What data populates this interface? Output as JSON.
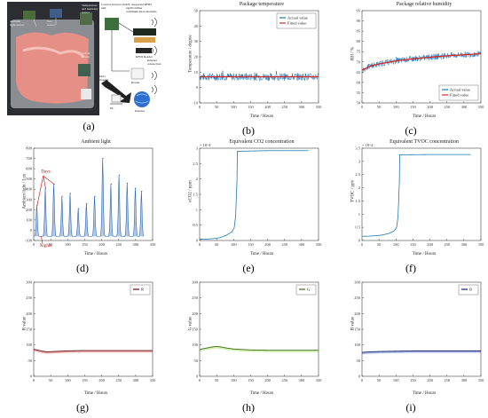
{
  "panel_labels": [
    "(a)",
    "(b)",
    "(c)",
    "(d)",
    "(e)",
    "(f)",
    "(g)",
    "(h)",
    "(i)"
  ],
  "photo": {
    "labels": {
      "ambient": "Ambient light sensor",
      "gas": "Gas sensor",
      "th": "Temperature and humidity sensor",
      "color": "Colour sensor",
      "control": "Control and process unit",
      "rfid_module": "I2C supported RFID tag/PC/Other communication modules",
      "rfid_reader": "RFID Reader",
      "router": "Router",
      "internet_conn": "Internet connection",
      "pc": "PC",
      "internet": "Internet",
      "data_transfer": "Data transfer"
    }
  },
  "chart_data": [
    {
      "id": "b",
      "type": "line",
      "title": "Package temperature",
      "xlabel": "Time / Hours",
      "ylabel": "Temperature / degree",
      "xlim": [
        0,
        350
      ],
      "ylim": [
        -10,
        50
      ],
      "xticks": [
        0,
        50,
        100,
        150,
        200,
        250,
        300,
        350
      ],
      "yticks": [
        -10,
        0,
        10,
        20,
        30,
        40,
        50
      ],
      "legend": {
        "position": "top-right",
        "entries": [
          "Actual value",
          "Fitted value"
        ]
      },
      "series": [
        {
          "name": "Actual value",
          "color": "#1f77b4",
          "style": "noisy",
          "x_range": [
            0,
            350
          ],
          "mean": 7,
          "spread": 2.5
        },
        {
          "name": "Fitted value",
          "color": "#d62728",
          "x": [
            0,
            350
          ],
          "values": [
            7,
            7
          ]
        }
      ]
    },
    {
      "id": "c",
      "type": "line",
      "title": "Package relative humidity",
      "xlabel": "Time / Hours",
      "ylabel": "RH / %",
      "xlim": [
        0,
        350
      ],
      "ylim": [
        50,
        95
      ],
      "xticks": [
        0,
        50,
        100,
        150,
        200,
        250,
        300,
        350
      ],
      "yticks": [
        50,
        55,
        60,
        65,
        70,
        75,
        80,
        85,
        90,
        95
      ],
      "legend": {
        "position": "bottom-right",
        "entries": [
          "Actual value",
          "Fitted value"
        ]
      },
      "series": [
        {
          "name": "Actual value",
          "color": "#1f77b4",
          "style": "noisy",
          "x_range": [
            0,
            350
          ],
          "curve": "fitted",
          "spread": 1.5
        },
        {
          "name": "Fitted value",
          "color": "#d62728",
          "x": [
            0,
            25,
            50,
            100,
            150,
            200,
            250,
            300,
            350
          ],
          "values": [
            66,
            68,
            69,
            70.5,
            71.5,
            72.3,
            73,
            73.5,
            74
          ]
        }
      ]
    },
    {
      "id": "d",
      "type": "line",
      "title": "Ambient light",
      "xlabel": "Time / Hours",
      "ylabel": "Ambient light / Lux",
      "xlim": [
        0,
        350
      ],
      "ylim": [
        -100,
        800
      ],
      "xticks": [
        0,
        50,
        100,
        150,
        200,
        250,
        300,
        350
      ],
      "yticks": [
        -100,
        0,
        100,
        200,
        300,
        400,
        500,
        600,
        700,
        800
      ],
      "annotations": [
        "Days",
        "Nights"
      ],
      "series": [
        {
          "name": "",
          "color": "#1f5fb4",
          "style": "daily",
          "peaks_x": [
            10,
            35,
            60,
            84,
            108,
            132,
            156,
            180,
            204,
            228,
            252,
            276,
            300,
            318
          ],
          "peaks": [
            240,
            410,
            450,
            330,
            360,
            210,
            260,
            330,
            700,
            450,
            540,
            460,
            410,
            380
          ],
          "night_value": -60
        }
      ]
    },
    {
      "id": "e",
      "type": "line",
      "title": "Equivalent CO2 concentration",
      "xlabel": "Time / Hours",
      "ylabel": "eCO2 / ppm",
      "xlim": [
        0,
        350
      ],
      "ylim": [
        0,
        30000
      ],
      "xticks": [
        0,
        50,
        100,
        150,
        200,
        250,
        300,
        350
      ],
      "yticks": [
        0,
        5000,
        10000,
        15000,
        20000,
        25000,
        30000
      ],
      "ytick_labels": [
        "0",
        "0.5",
        "1",
        "1.5",
        "2",
        "2.5",
        "3"
      ],
      "y_multiplier": "× 10^4",
      "series": [
        {
          "name": "",
          "color": "#1f77b4",
          "x": [
            0,
            20,
            40,
            60,
            80,
            95,
            102,
            106,
            110,
            111,
            200,
            320
          ],
          "values": [
            400,
            450,
            600,
            900,
            1800,
            2800,
            4200,
            8000,
            20000,
            29000,
            29200,
            29200
          ]
        }
      ]
    },
    {
      "id": "f",
      "type": "line",
      "title": "Equivalent TVOC concentration",
      "xlabel": "Time / Hours",
      "ylabel": "TVOC / ppb",
      "xlim": [
        0,
        350
      ],
      "ylim": [
        0,
        35000
      ],
      "xticks": [
        0,
        50,
        100,
        150,
        200,
        250,
        300,
        350
      ],
      "yticks": [
        0,
        5000,
        10000,
        15000,
        20000,
        25000,
        30000,
        35000
      ],
      "ytick_labels": [
        "0",
        "0.5",
        "1",
        "1.5",
        "2",
        "2.5",
        "3",
        "3.5"
      ],
      "y_multiplier": "× 10^4",
      "series": [
        {
          "name": "",
          "color": "#1f77b4",
          "x": [
            0,
            20,
            40,
            60,
            80,
            95,
            102,
            106,
            110,
            111,
            200,
            320
          ],
          "values": [
            1600,
            1650,
            1800,
            2100,
            2700,
            3700,
            5000,
            9000,
            22000,
            32500,
            32600,
            32600
          ]
        }
      ]
    },
    {
      "id": "g",
      "type": "line",
      "title": "",
      "xlabel": "Time / Hours",
      "ylabel": "R value",
      "xlim": [
        0,
        350
      ],
      "ylim": [
        0,
        300
      ],
      "xticks": [
        0,
        50,
        100,
        150,
        200,
        250,
        300,
        350
      ],
      "yticks": [
        0,
        50,
        100,
        150,
        200,
        250,
        300
      ],
      "legend": {
        "position": "top-right",
        "entries": [
          "R"
        ]
      },
      "series": [
        {
          "name": "R",
          "color": "#e02020",
          "dark": "#5a1010",
          "x": [
            0,
            10,
            25,
            40,
            60,
            100,
            150,
            200,
            250,
            300,
            350
          ],
          "values": [
            86,
            84,
            80,
            78,
            79,
            81,
            82,
            82,
            82,
            82,
            82
          ]
        }
      ]
    },
    {
      "id": "h",
      "type": "line",
      "title": "",
      "xlabel": "Time / Hours",
      "ylabel": "G value",
      "xlim": [
        0,
        350
      ],
      "ylim": [
        0,
        300
      ],
      "xticks": [
        0,
        50,
        100,
        150,
        200,
        250,
        300,
        350
      ],
      "yticks": [
        0,
        50,
        100,
        150,
        200,
        250,
        300
      ],
      "legend": {
        "position": "top-right",
        "entries": [
          "G"
        ]
      },
      "series": [
        {
          "name": "G",
          "color": "#7ed321",
          "dark": "#3d6e10",
          "x": [
            0,
            10,
            25,
            40,
            50,
            60,
            80,
            100,
            150,
            200,
            250,
            300,
            350
          ],
          "values": [
            85,
            88,
            91,
            94,
            95,
            94,
            90,
            87,
            84,
            83,
            83,
            83,
            83
          ]
        }
      ]
    },
    {
      "id": "i",
      "type": "line",
      "title": "",
      "xlabel": "Time / Hours",
      "ylabel": "B value",
      "xlim": [
        0,
        350
      ],
      "ylim": [
        0,
        300
      ],
      "xticks": [
        0,
        50,
        100,
        150,
        200,
        250,
        300,
        350
      ],
      "yticks": [
        0,
        50,
        100,
        150,
        200,
        250,
        300
      ],
      "legend": {
        "position": "top-right",
        "entries": [
          "B"
        ]
      },
      "series": [
        {
          "name": "B",
          "color": "#2040d0",
          "dark": "#101f60",
          "x": [
            0,
            10,
            25,
            50,
            100,
            150,
            200,
            250,
            300,
            350
          ],
          "values": [
            76,
            77,
            78,
            79,
            80,
            81,
            81,
            81,
            81,
            81
          ]
        }
      ]
    }
  ]
}
